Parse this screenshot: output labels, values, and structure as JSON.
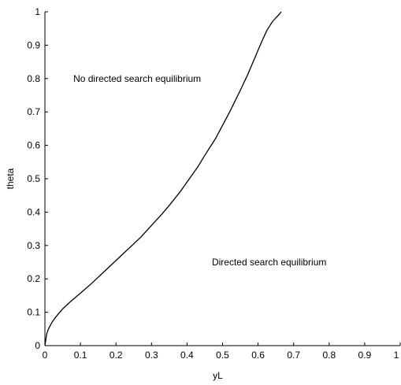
{
  "chart_data": {
    "type": "line",
    "title": "",
    "xlabel": "yL",
    "ylabel": "theta",
    "xlim": [
      0,
      1
    ],
    "ylim": [
      0,
      1
    ],
    "xticks": [
      "0",
      "0.1",
      "0.2",
      "0.3",
      "0.4",
      "0.5",
      "0.6",
      "0.7",
      "0.8",
      "0.9",
      "1"
    ],
    "yticks": [
      "0",
      "0.1",
      "0.2",
      "0.3",
      "0.4",
      "0.5",
      "0.6",
      "0.7",
      "0.8",
      "0.9",
      "1"
    ],
    "grid": false,
    "series": [
      {
        "name": "",
        "color": "#000000",
        "x": [
          0,
          0.005,
          0.01,
          0.02,
          0.03,
          0.05,
          0.07,
          0.09,
          0.1,
          0.13,
          0.15,
          0.17,
          0.2,
          0.23,
          0.25,
          0.27,
          0.3,
          0.33,
          0.35,
          0.38,
          0.4,
          0.43,
          0.45,
          0.48,
          0.5,
          0.52,
          0.55,
          0.57,
          0.59,
          0.61,
          0.625,
          0.64,
          0.65,
          0.66,
          0.665
        ],
        "y": [
          0,
          0.035,
          0.05,
          0.07,
          0.085,
          0.11,
          0.13,
          0.148,
          0.157,
          0.185,
          0.205,
          0.225,
          0.255,
          0.285,
          0.305,
          0.325,
          0.36,
          0.395,
          0.42,
          0.46,
          0.49,
          0.535,
          0.57,
          0.62,
          0.66,
          0.7,
          0.765,
          0.81,
          0.86,
          0.91,
          0.945,
          0.97,
          0.982,
          0.993,
          1.0
        ]
      }
    ],
    "annotations": [
      {
        "text": "No directed search equilibrium",
        "x": 0.08,
        "y": 0.79
      },
      {
        "text": "Directed search equilibrium",
        "x": 0.47,
        "y": 0.24
      }
    ]
  }
}
